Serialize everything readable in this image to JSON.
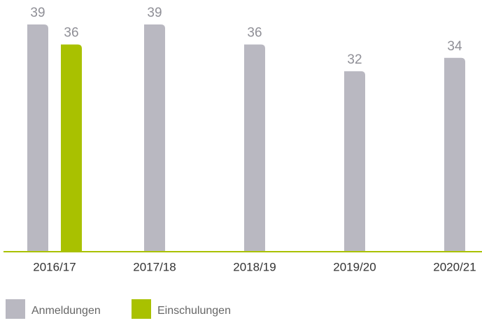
{
  "chart_data": {
    "type": "bar",
    "categories": [
      "2016/17",
      "2017/18",
      "2018/19",
      "2019/20",
      "2020/21"
    ],
    "series": [
      {
        "name": "Anmeldungen",
        "color": "#b9b8c1",
        "values": [
          39,
          39,
          36,
          32,
          34
        ]
      },
      {
        "name": "Einschulungen",
        "color": "#a9c100",
        "values": [
          36,
          null,
          null,
          null,
          null
        ]
      }
    ],
    "ylim": [
      5,
      40
    ],
    "axis_color": "#a9c100"
  }
}
